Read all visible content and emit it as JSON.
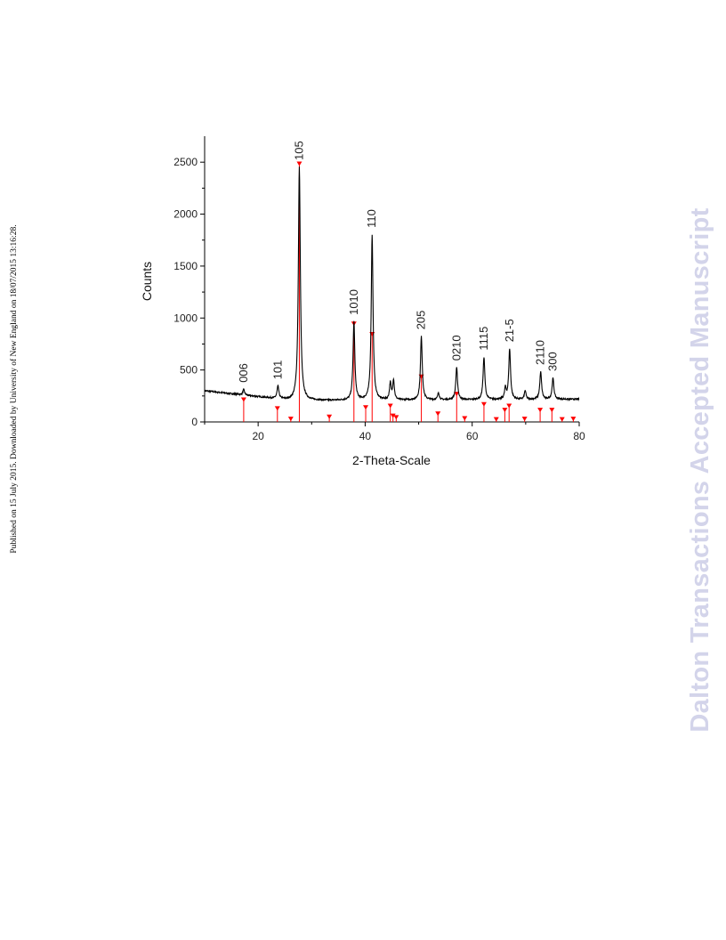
{
  "side_note": "Published on 15 July 2015. Downloaded by University of New England on 18/07/2015 13:16:28.",
  "watermark": "Dalton Transactions Accepted Manuscript",
  "colors": {
    "pattern": "#ff0000",
    "trace": "#000000",
    "watermark": "#d3d4ea"
  },
  "chart_data": {
    "type": "line",
    "xlabel": "2-Theta-Scale",
    "ylabel": "Counts",
    "xlim": [
      10,
      80
    ],
    "ylim": [
      0,
      2750
    ],
    "xticks": [
      20,
      40,
      60,
      80
    ],
    "yticks": [
      0,
      500,
      1000,
      1500,
      2000,
      2500
    ],
    "grid": false,
    "peaks": [
      {
        "label": "006",
        "x": 17.3,
        "y": 310
      },
      {
        "label": "101",
        "x": 23.7,
        "y": 340
      },
      {
        "label": "105",
        "x": 27.7,
        "y": 2450
      },
      {
        "label": "1010",
        "x": 37.9,
        "y": 960
      },
      {
        "label": "110",
        "x": 41.3,
        "y": 1800
      },
      {
        "label": "205",
        "x": 50.5,
        "y": 820
      },
      {
        "label": "0210",
        "x": 57.1,
        "y": 520
      },
      {
        "label": "1115",
        "x": 62.2,
        "y": 620
      },
      {
        "label": "21-5",
        "x": 67.0,
        "y": 700
      },
      {
        "label": "2110",
        "x": 72.8,
        "y": 480
      },
      {
        "label": "300",
        "x": 75.1,
        "y": 420
      }
    ],
    "minor_peaks": [
      {
        "x": 44.7,
        "y": 370
      },
      {
        "x": 45.3,
        "y": 400
      },
      {
        "x": 53.7,
        "y": 280
      },
      {
        "x": 66.2,
        "y": 320
      },
      {
        "x": 69.9,
        "y": 300
      }
    ],
    "reference_pattern": [
      {
        "x": 17.3,
        "y": 210
      },
      {
        "x": 23.6,
        "y": 125
      },
      {
        "x": 26.1,
        "y": 25
      },
      {
        "x": 27.7,
        "y": 2480
      },
      {
        "x": 33.3,
        "y": 45
      },
      {
        "x": 37.9,
        "y": 940
      },
      {
        "x": 40.1,
        "y": 135
      },
      {
        "x": 41.3,
        "y": 840
      },
      {
        "x": 44.7,
        "y": 150
      },
      {
        "x": 45.2,
        "y": 55
      },
      {
        "x": 45.8,
        "y": 40
      },
      {
        "x": 50.5,
        "y": 430
      },
      {
        "x": 53.6,
        "y": 75
      },
      {
        "x": 57.1,
        "y": 265
      },
      {
        "x": 58.6,
        "y": 30
      },
      {
        "x": 62.2,
        "y": 165
      },
      {
        "x": 64.5,
        "y": 20
      },
      {
        "x": 66.1,
        "y": 110
      },
      {
        "x": 66.9,
        "y": 150
      },
      {
        "x": 69.8,
        "y": 25
      },
      {
        "x": 72.7,
        "y": 110
      },
      {
        "x": 74.9,
        "y": 110
      },
      {
        "x": 76.8,
        "y": 20
      },
      {
        "x": 78.9,
        "y": 25
      }
    ]
  }
}
